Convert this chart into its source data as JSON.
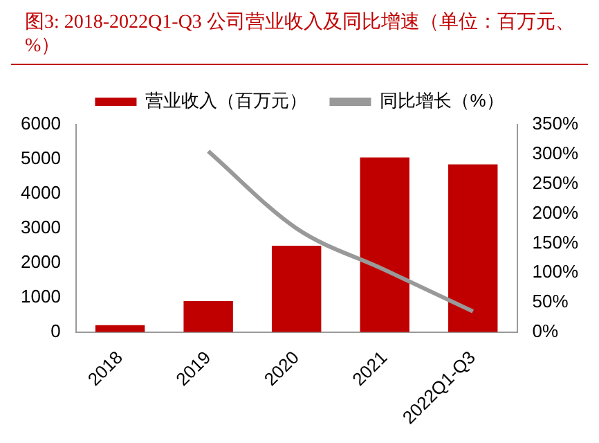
{
  "chart_data": {
    "type": "bar",
    "title": "图3:  2018-2022Q1-Q3 公司营业收入及同比增速（单位：百万元、%）",
    "categories": [
      "2018",
      "2019",
      "2020",
      "2021",
      "2022Q1-Q3"
    ],
    "series": [
      {
        "name": "营业收入（百万元）",
        "color": "#c00000",
        "values": [
          200,
          900,
          2500,
          5050,
          4850
        ]
      },
      {
        "name": "同比增长（%）",
        "type": "line",
        "axis": "y2",
        "color": "#999999",
        "values": [
          null,
          305,
          175,
          105,
          35
        ]
      }
    ],
    "ylim": [
      0,
      6000
    ],
    "yticks": [
      0,
      1000,
      2000,
      3000,
      4000,
      5000,
      6000
    ],
    "y2lim": [
      0,
      350
    ],
    "y2ticks": [
      {
        "value": 0,
        "label": "0%"
      },
      {
        "value": 50,
        "label": "50%"
      },
      {
        "value": 100,
        "label": "100%"
      },
      {
        "value": 150,
        "label": "150%"
      },
      {
        "value": 200,
        "label": "200%"
      },
      {
        "value": 250,
        "label": "250%"
      },
      {
        "value": 300,
        "label": "300%"
      },
      {
        "value": 350,
        "label": "350%"
      }
    ],
    "legend": "top",
    "grid": false,
    "marker": "none"
  }
}
